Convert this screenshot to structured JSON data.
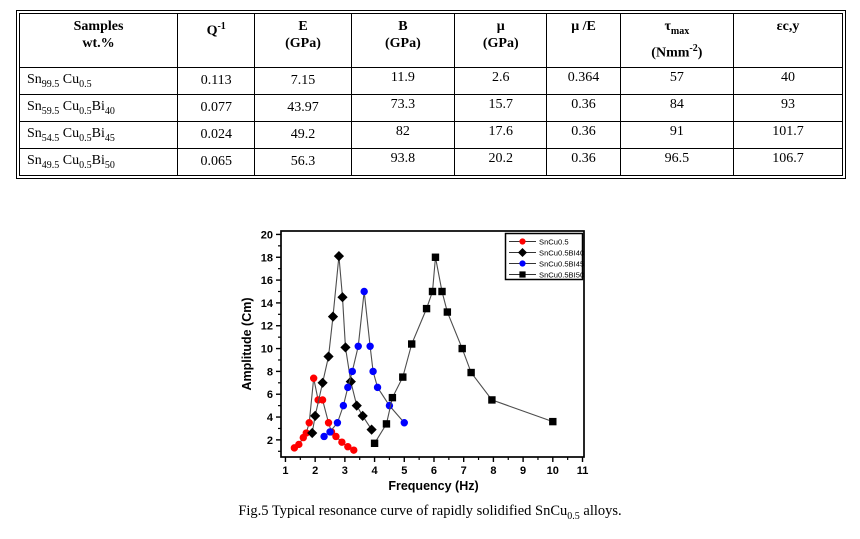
{
  "table": {
    "headers": [
      "Samples|wt.%",
      "Q^{-1}",
      "E|(GPa)",
      "B|(GPa)",
      "μ|(GPa)",
      "μ /E",
      "τ_{max}|(Nmm^{-2})",
      "εc,y"
    ],
    "rows": [
      {
        "sample": "Sn_{99.5} Cu_{0.5}",
        "values": [
          "0.113",
          "7.15",
          "11.9",
          "2.6",
          "0.364",
          "57",
          "40"
        ]
      },
      {
        "sample": "Sn_{59.5} Cu_{0.5}Bi_{40}",
        "values": [
          "0.077",
          "43.97",
          "73.3",
          "15.7",
          "0.36",
          "84",
          "93"
        ]
      },
      {
        "sample": "Sn_{54.5} Cu_{0.5}Bi_{45}",
        "values": [
          "0.024",
          "49.2",
          "82",
          "17.6",
          "0.36",
          "91",
          "101.7"
        ]
      },
      {
        "sample": "Sn_{49.5} Cu_{0.5}Bi_{50}",
        "values": [
          "0.065",
          "56.3",
          "93.8",
          "20.2",
          "0.36",
          "96.5",
          "106.7"
        ]
      }
    ]
  },
  "chart_data": {
    "type": "line",
    "title": "",
    "xlabel": "Frequency (Hz)",
    "ylabel": "Amplitude (Cm)",
    "xlim": [
      0.85,
      11.05
    ],
    "ylim": [
      0.5,
      20.3
    ],
    "x_ticks": [
      1,
      2,
      3,
      4,
      5,
      6,
      7,
      8,
      9,
      10,
      11
    ],
    "y_ticks": [
      2,
      4,
      6,
      8,
      10,
      12,
      14,
      16,
      18,
      20
    ],
    "grid": false,
    "legend_position": "top-right",
    "line_color": "#4D4D4D",
    "series": [
      {
        "name": "SnCu0.5",
        "marker": "circle",
        "color": "#FF0000",
        "points": [
          [
            1.3,
            1.3
          ],
          [
            1.45,
            1.6
          ],
          [
            1.6,
            2.2
          ],
          [
            1.7,
            2.6
          ],
          [
            1.8,
            3.5
          ],
          [
            1.95,
            7.4
          ],
          [
            2.1,
            5.5
          ],
          [
            2.25,
            5.5
          ],
          [
            2.45,
            3.5
          ],
          [
            2.55,
            2.7
          ],
          [
            2.7,
            2.3
          ],
          [
            2.9,
            1.8
          ],
          [
            3.1,
            1.4
          ],
          [
            3.3,
            1.1
          ]
        ]
      },
      {
        "name": "SnCu0.5BI40",
        "marker": "diamond",
        "color": "#000000",
        "points": [
          [
            1.9,
            2.6
          ],
          [
            2.0,
            4.1
          ],
          [
            2.25,
            7.0
          ],
          [
            2.45,
            9.3
          ],
          [
            2.6,
            12.8
          ],
          [
            2.8,
            18.1
          ],
          [
            2.92,
            14.5
          ],
          [
            3.02,
            10.1
          ],
          [
            3.2,
            7.1
          ],
          [
            3.4,
            5.0
          ],
          [
            3.6,
            4.1
          ],
          [
            3.9,
            2.9
          ]
        ]
      },
      {
        "name": "SnCu0.5BI45",
        "marker": "circle",
        "color": "#0000FF",
        "points": [
          [
            2.3,
            2.3
          ],
          [
            2.5,
            2.7
          ],
          [
            2.75,
            3.5
          ],
          [
            2.95,
            5.0
          ],
          [
            3.1,
            6.6
          ],
          [
            3.25,
            8.0
          ],
          [
            3.45,
            10.2
          ],
          [
            3.65,
            15.0
          ],
          [
            3.85,
            10.2
          ],
          [
            3.95,
            8.0
          ],
          [
            4.1,
            6.6
          ],
          [
            4.5,
            5.0
          ],
          [
            5.0,
            3.5
          ]
        ]
      },
      {
        "name": "SnCu0.5BI50",
        "marker": "square",
        "color": "#000000",
        "points": [
          [
            4.0,
            1.7
          ],
          [
            4.4,
            3.4
          ],
          [
            4.6,
            5.7
          ],
          [
            4.95,
            7.5
          ],
          [
            5.25,
            10.4
          ],
          [
            5.75,
            13.5
          ],
          [
            5.95,
            15.0
          ],
          [
            6.05,
            18.0
          ],
          [
            6.27,
            15.0
          ],
          [
            6.45,
            13.2
          ],
          [
            6.95,
            10.0
          ],
          [
            7.25,
            7.9
          ],
          [
            7.95,
            5.5
          ],
          [
            10.0,
            3.6
          ]
        ]
      }
    ]
  },
  "caption": "Fig.5 Typical resonance curve of rapidly solidified SnCu_{0.5} alloys."
}
